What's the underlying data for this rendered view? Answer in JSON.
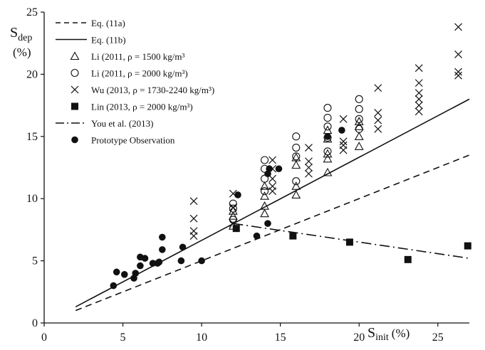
{
  "chart_data": {
    "type": "scatter",
    "x_axis": {
      "label_main": "S",
      "label_sub": "init",
      "label_unit": "(%)",
      "range": [
        0,
        27
      ],
      "ticks": [
        0,
        5,
        10,
        15,
        20,
        25
      ],
      "tick_labels": [
        "0",
        "5",
        "10",
        "15",
        "20",
        "25"
      ]
    },
    "y_axis": {
      "label_main": "S",
      "label_sub": "dep",
      "label_unit": "(%)",
      "range": [
        0,
        25
      ],
      "ticks": [
        0,
        5,
        10,
        15,
        20,
        25
      ],
      "tick_labels": [
        "0",
        "5",
        "10",
        "15",
        "20",
        "25"
      ]
    },
    "grid": false,
    "legend_position": "top-left",
    "lines": [
      {
        "name": "Eq. (11a)",
        "style": "dashed",
        "points": [
          [
            2,
            1.0
          ],
          [
            27,
            13.5
          ]
        ]
      },
      {
        "name": "Eq. (11b)",
        "style": "solid",
        "points": [
          [
            2,
            1.3
          ],
          [
            27,
            18.0
          ]
        ]
      },
      {
        "name": "You et al. (2013)",
        "style": "dash-dot",
        "points": [
          [
            12,
            8.0
          ],
          [
            27,
            5.2
          ]
        ]
      }
    ],
    "series": [
      {
        "name": "Li (2011, ρ = 1500 kg/m³",
        "marker": "triangle",
        "points": [
          [
            12,
            7.8
          ],
          [
            12,
            8.6
          ],
          [
            12,
            9.0
          ],
          [
            14,
            8.8
          ],
          [
            14,
            9.4
          ],
          [
            14,
            10.2
          ],
          [
            14,
            11.0
          ],
          [
            16,
            10.3
          ],
          [
            16,
            11.0
          ],
          [
            16,
            12.7
          ],
          [
            16,
            13.3
          ],
          [
            18,
            12.1
          ],
          [
            18,
            13.2
          ],
          [
            18,
            13.6
          ],
          [
            18,
            14.8
          ],
          [
            18,
            15.5
          ],
          [
            20,
            14.2
          ],
          [
            20,
            15.0
          ],
          [
            20,
            15.8
          ],
          [
            20,
            16.2
          ]
        ]
      },
      {
        "name": "Li (2011, ρ = 2000 kg/m³)",
        "marker": "circle-open",
        "points": [
          [
            12,
            8.3
          ],
          [
            12,
            9.2
          ],
          [
            12,
            9.6
          ],
          [
            14,
            10.6
          ],
          [
            14,
            11.6
          ],
          [
            14,
            12.4
          ],
          [
            14,
            13.1
          ],
          [
            16,
            11.4
          ],
          [
            16,
            13.4
          ],
          [
            16,
            14.1
          ],
          [
            16,
            15.0
          ],
          [
            18,
            13.8
          ],
          [
            18,
            14.9
          ],
          [
            18,
            15.8
          ],
          [
            18,
            16.5
          ],
          [
            18,
            17.3
          ],
          [
            20,
            15.6
          ],
          [
            20,
            16.4
          ],
          [
            20,
            17.2
          ],
          [
            20,
            18.0
          ]
        ]
      },
      {
        "name": "Wu (2013, ρ = 1730-2240 kg/m³)",
        "marker": "x",
        "points": [
          [
            9.5,
            7.0
          ],
          [
            9.5,
            7.4
          ],
          [
            9.5,
            8.4
          ],
          [
            9.5,
            9.8
          ],
          [
            12,
            8.0
          ],
          [
            12,
            9.3
          ],
          [
            12,
            10.4
          ],
          [
            14.5,
            10.6
          ],
          [
            14.5,
            11.0
          ],
          [
            14.5,
            11.6
          ],
          [
            14.5,
            12.4
          ],
          [
            14.5,
            13.1
          ],
          [
            16.8,
            12.0
          ],
          [
            16.8,
            12.5
          ],
          [
            16.8,
            13.0
          ],
          [
            16.8,
            14.1
          ],
          [
            19,
            13.9
          ],
          [
            19,
            14.3
          ],
          [
            19,
            14.6
          ],
          [
            19,
            16.4
          ],
          [
            21.2,
            15.6
          ],
          [
            21.2,
            16.3
          ],
          [
            21.2,
            16.9
          ],
          [
            21.2,
            18.9
          ],
          [
            23.8,
            17.0
          ],
          [
            23.8,
            17.5
          ],
          [
            23.8,
            18.0
          ],
          [
            23.8,
            18.5
          ],
          [
            23.8,
            19.3
          ],
          [
            23.8,
            20.5
          ],
          [
            26.3,
            19.9
          ],
          [
            26.3,
            20.2
          ],
          [
            26.3,
            21.6
          ],
          [
            26.3,
            23.8
          ]
        ]
      },
      {
        "name": "Lin (2013, ρ = 2000 kg/m³)",
        "marker": "square-filled",
        "points": [
          [
            12.2,
            7.6
          ],
          [
            15.8,
            7.0
          ],
          [
            19.4,
            6.5
          ],
          [
            23.1,
            5.1
          ],
          [
            26.9,
            6.2
          ]
        ]
      },
      {
        "name": "You et al.  (2013)",
        "marker": "none",
        "points": []
      },
      {
        "name": "Prototype Observation",
        "marker": "circle-filled",
        "points": [
          [
            4.4,
            3.0
          ],
          [
            4.6,
            4.1
          ],
          [
            5.1,
            3.9
          ],
          [
            5.7,
            3.6
          ],
          [
            5.8,
            4.0
          ],
          [
            6.1,
            4.6
          ],
          [
            6.1,
            5.3
          ],
          [
            6.4,
            5.2
          ],
          [
            6.9,
            4.8
          ],
          [
            7.2,
            4.8
          ],
          [
            7.3,
            4.9
          ],
          [
            7.5,
            5.9
          ],
          [
            7.5,
            6.9
          ],
          [
            8.7,
            5.0
          ],
          [
            8.8,
            6.1
          ],
          [
            10.0,
            5.0
          ],
          [
            12.3,
            10.3
          ],
          [
            13.5,
            7.0
          ],
          [
            14.2,
            8.0
          ],
          [
            14.2,
            12.0
          ],
          [
            14.3,
            12.4
          ],
          [
            14.9,
            12.4
          ],
          [
            18.0,
            15.0
          ],
          [
            18.9,
            15.5
          ]
        ]
      }
    ]
  },
  "legend": {
    "items": [
      {
        "label": "Eq. (11a)",
        "symbol": "dashed"
      },
      {
        "label": "Eq. (11b)",
        "symbol": "solid"
      },
      {
        "label": "Li (2011, ρ = 1500 kg/m³",
        "symbol": "triangle"
      },
      {
        "label": "Li (2011, ρ = 2000 kg/m³)",
        "symbol": "circle-open"
      },
      {
        "label": "Wu (2013, ρ = 1730-2240 kg/m³)",
        "symbol": "x"
      },
      {
        "label": "Lin (2013, ρ = 2000 kg/m³)",
        "symbol": "square-filled"
      },
      {
        "label": "You et al.  (2013)",
        "symbol": "dash-dot"
      },
      {
        "label": "Prototype Observation",
        "symbol": "circle-filled"
      }
    ]
  },
  "colors": {
    "ink": "#111111",
    "background": "#ffffff"
  }
}
